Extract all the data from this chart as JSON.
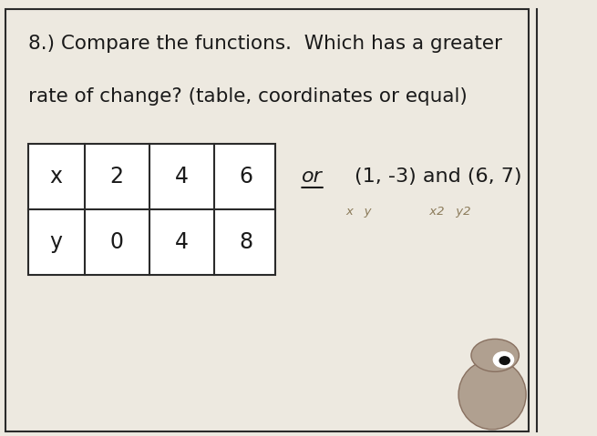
{
  "title_line1": "8.) Compare the functions.  Which has a greater",
  "title_line2": "rate of change? (table, coordinates or equal)",
  "table_headers": [
    "x",
    "2",
    "4",
    "6"
  ],
  "table_row2": [
    "y",
    "0",
    "4",
    "8"
  ],
  "or_text": "or",
  "coords_text": "(1, -3) and (6, 7)",
  "paper_color": "#ede9e0",
  "border_color": "#2a2a2a",
  "text_color": "#1a1a1a",
  "handwritten_color": "#8B7B5A",
  "title_fontsize": 15.5,
  "body_fontsize": 16
}
